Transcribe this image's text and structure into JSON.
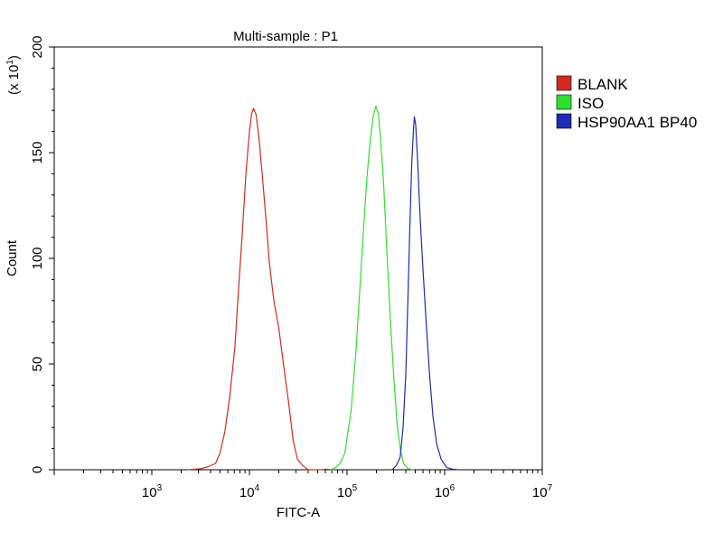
{
  "chart_data": {
    "type": "line",
    "title": "Multi-sample : P1",
    "xlabel": "FITC-A",
    "ylabel": "Count",
    "y_multiplier": "(x 10",
    "y_multiplier_exp": "1",
    "y_multiplier_close": ")",
    "x_scale": "log",
    "xlim": [
      100,
      10000000
    ],
    "ylim": [
      0,
      200
    ],
    "grid": false,
    "legend_position": "right",
    "x_ticks": [
      {
        "base": "10",
        "exp": "3",
        "value": 1000
      },
      {
        "base": "10",
        "exp": "4",
        "value": 10000
      },
      {
        "base": "10",
        "exp": "5",
        "value": 100000
      },
      {
        "base": "10",
        "exp": "6",
        "value": 1000000
      },
      {
        "base": "10",
        "exp": "7",
        "value": 10000000
      }
    ],
    "y_ticks": [
      "0",
      "50",
      "100",
      "150",
      "200"
    ],
    "series": [
      {
        "name": "BLANK",
        "color": "#d42a1e",
        "points": [
          [
            2300,
            0
          ],
          [
            3200,
            0.5
          ],
          [
            3800,
            1.5
          ],
          [
            4500,
            3
          ],
          [
            5000,
            8
          ],
          [
            5600,
            18
          ],
          [
            6300,
            35
          ],
          [
            7100,
            58
          ],
          [
            7600,
            80
          ],
          [
            8400,
            110
          ],
          [
            9200,
            140
          ],
          [
            10000,
            160
          ],
          [
            10500,
            168
          ],
          [
            11000,
            171
          ],
          [
            11700,
            168
          ],
          [
            12500,
            157
          ],
          [
            13500,
            140
          ],
          [
            14800,
            118
          ],
          [
            16000,
            98
          ],
          [
            17800,
            80
          ],
          [
            20000,
            67
          ],
          [
            22000,
            52
          ],
          [
            25000,
            33
          ],
          [
            28000,
            14
          ],
          [
            31000,
            5
          ],
          [
            35000,
            2
          ],
          [
            40000,
            0
          ],
          [
            46000,
            0
          ],
          [
            55000,
            0
          ],
          [
            60000,
            0.3
          ],
          [
            75000,
            0
          ]
        ]
      },
      {
        "name": "ISO",
        "color": "#2ee02e",
        "points": [
          [
            68000,
            0
          ],
          [
            75000,
            0.8
          ],
          [
            85000,
            3
          ],
          [
            95000,
            8
          ],
          [
            110000,
            28
          ],
          [
            123000,
            55
          ],
          [
            135000,
            85
          ],
          [
            148000,
            115
          ],
          [
            160000,
            138
          ],
          [
            172000,
            155
          ],
          [
            185000,
            167
          ],
          [
            197000,
            172
          ],
          [
            210000,
            168
          ],
          [
            222000,
            155
          ],
          [
            237000,
            135
          ],
          [
            255000,
            105
          ],
          [
            275000,
            75
          ],
          [
            300000,
            45
          ],
          [
            325000,
            22
          ],
          [
            350000,
            10
          ],
          [
            380000,
            3
          ],
          [
            420000,
            0.5
          ],
          [
            480000,
            0
          ]
        ]
      },
      {
        "name": "HSP90AA1 BP40",
        "color": "#1e2bb4",
        "points": [
          [
            290000,
            0
          ],
          [
            320000,
            2
          ],
          [
            350000,
            6
          ],
          [
            375000,
            20
          ],
          [
            400000,
            45
          ],
          [
            420000,
            80
          ],
          [
            440000,
            115
          ],
          [
            460000,
            145
          ],
          [
            478000,
            160
          ],
          [
            490000,
            167
          ],
          [
            505000,
            163
          ],
          [
            530000,
            145
          ],
          [
            560000,
            120
          ],
          [
            600000,
            95
          ],
          [
            650000,
            68
          ],
          [
            700000,
            45
          ],
          [
            760000,
            25
          ],
          [
            830000,
            12
          ],
          [
            920000,
            5
          ],
          [
            1050000,
            1
          ],
          [
            1200000,
            0.3
          ],
          [
            1400000,
            0
          ]
        ]
      }
    ]
  }
}
